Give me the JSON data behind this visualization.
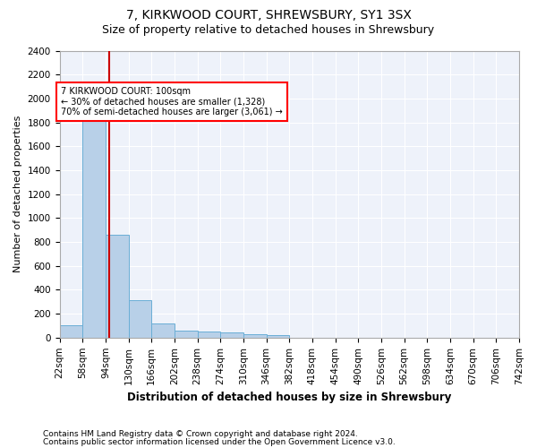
{
  "title1": "7, KIRKWOOD COURT, SHREWSBURY, SY1 3SX",
  "title2": "Size of property relative to detached houses in Shrewsbury",
  "xlabel": "Distribution of detached houses by size in Shrewsbury",
  "ylabel": "Number of detached properties",
  "footnote1": "Contains HM Land Registry data © Crown copyright and database right 2024.",
  "footnote2": "Contains public sector information licensed under the Open Government Licence v3.0.",
  "bin_edges": [
    22,
    58,
    94,
    130,
    166,
    202,
    238,
    274,
    310,
    346,
    382,
    418,
    454,
    490,
    526,
    562,
    598,
    634,
    670,
    706,
    742
  ],
  "bar_heights": [
    100,
    1900,
    860,
    315,
    115,
    60,
    50,
    40,
    25,
    20,
    0,
    0,
    0,
    0,
    0,
    0,
    0,
    0,
    0,
    0
  ],
  "bar_color": "#b8d0e8",
  "bar_edge_color": "#6aaed6",
  "property_size": 100,
  "vline_color": "#cc0000",
  "annotation_text": "7 KIRKWOOD COURT: 100sqm\n← 30% of detached houses are smaller (1,328)\n70% of semi-detached houses are larger (3,061) →",
  "ylim": [
    0,
    2400
  ],
  "yticks": [
    0,
    200,
    400,
    600,
    800,
    1000,
    1200,
    1400,
    1600,
    1800,
    2000,
    2200,
    2400
  ],
  "background_color": "#eef2fa",
  "grid_color": "#ffffff",
  "title1_fontsize": 10,
  "title2_fontsize": 9,
  "xlabel_fontsize": 8.5,
  "ylabel_fontsize": 8,
  "tick_fontsize": 7.5,
  "footnote_fontsize": 6.5
}
